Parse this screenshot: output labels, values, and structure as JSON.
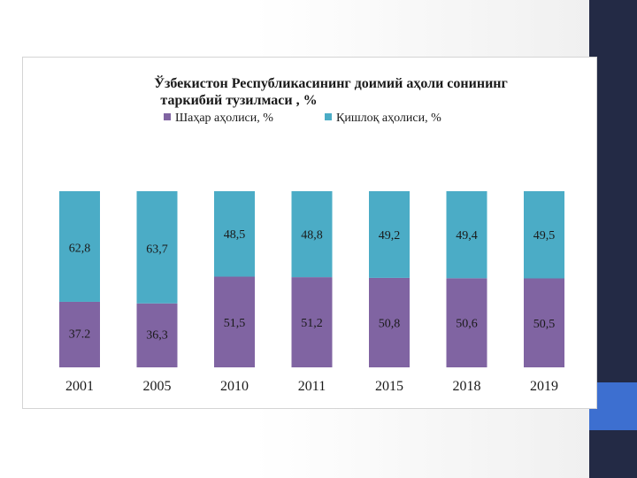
{
  "chart_data": {
    "type": "bar",
    "stacked": true,
    "percent": true,
    "title_lines": [
      "Ўзбекистон Республикасининг доимий аҳоли сонининг",
      "таркибий тузилмаси , %"
    ],
    "legend_position": "top",
    "categories": [
      "2001",
      "2005",
      "2010",
      "2011",
      "2015",
      "2018",
      "2019"
    ],
    "series": [
      {
        "name": "Шаҳар аҳолиси, %",
        "color": "#8064a2",
        "values": [
          37.2,
          36.3,
          51.5,
          51.2,
          50.8,
          50.6,
          50.5
        ],
        "labels": [
          "37.2",
          "36,3",
          "51,5",
          "51,2",
          "50,8",
          "50,6",
          "50,5"
        ]
      },
      {
        "name": "Қишлоқ аҳолиси, %",
        "color": "#4bacc6",
        "values": [
          62.8,
          63.7,
          48.5,
          48.8,
          49.2,
          49.4,
          49.5
        ],
        "labels": [
          "62,8",
          "63,7",
          "48,5",
          "48,8",
          "49,2",
          "49,4",
          "49,5"
        ]
      }
    ],
    "ylim": [
      0,
      100
    ],
    "grid": false
  },
  "theme": {
    "sidebar_color": "#232a45",
    "accent_color": "#3d6fd0"
  }
}
